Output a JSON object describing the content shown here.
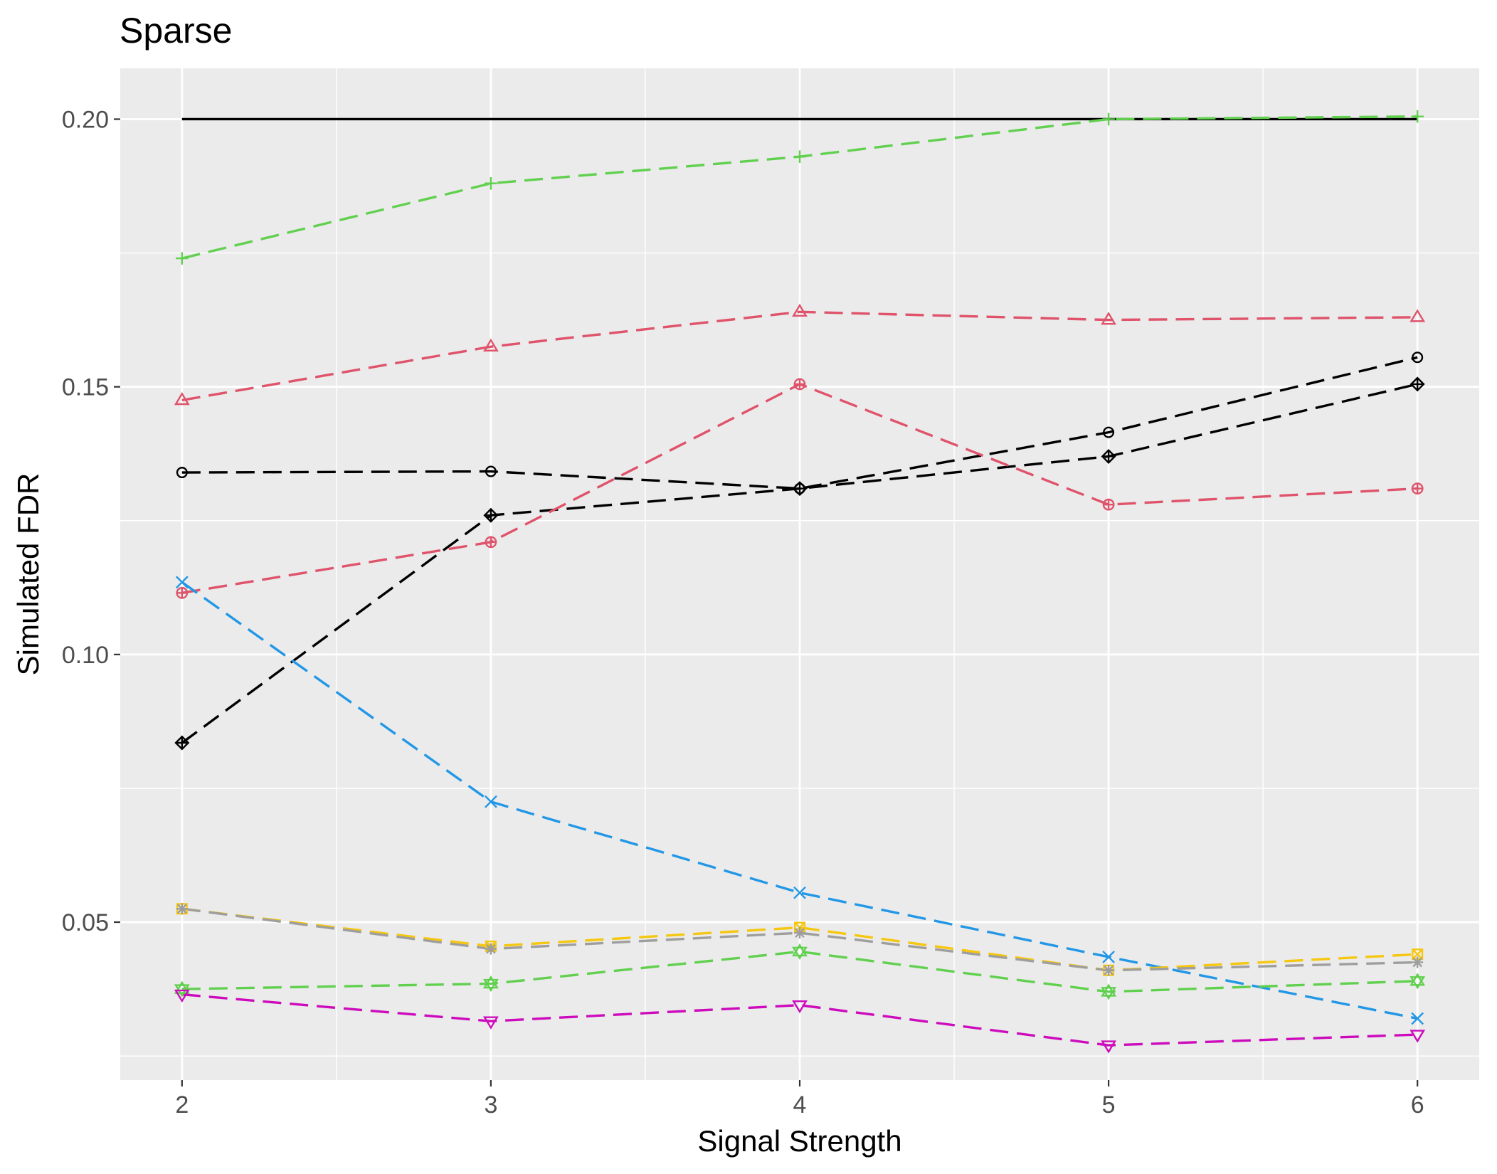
{
  "chart_data": {
    "type": "line",
    "title": "Sparse",
    "xlabel": "Signal Strength",
    "ylabel": "Simulated FDR",
    "x": [
      2,
      3,
      4,
      5,
      6
    ],
    "xlim": [
      1.8,
      6.2
    ],
    "ylim": [
      0.0205,
      0.2095
    ],
    "x_ticks": [
      "2",
      "3",
      "4",
      "5",
      "6"
    ],
    "y_ticks": [
      "0.05",
      "0.10",
      "0.15",
      "0.20"
    ],
    "x_tick_values": [
      2,
      3,
      4,
      5,
      6
    ],
    "y_tick_values": [
      0.05,
      0.1,
      0.15,
      0.2
    ],
    "grid": true,
    "legend": "none",
    "panel_background": "#EBEBEB",
    "reference_line": {
      "name": "target-fdr-line",
      "value": 0.2,
      "color": "#000000"
    },
    "series": [
      {
        "name": "green-plus-series",
        "color": "#61D04F",
        "marker": "plus",
        "values": [
          0.174,
          0.188,
          0.193,
          0.2,
          0.2005
        ]
      },
      {
        "name": "red-triangle-series",
        "color": "#DF536B",
        "marker": "triangle-up",
        "values": [
          0.1475,
          0.1575,
          0.164,
          0.1625,
          0.163
        ]
      },
      {
        "name": "black-circle-series",
        "color": "#000000",
        "marker": "circle",
        "values": [
          0.134,
          0.1342,
          0.131,
          0.1415,
          0.1555
        ]
      },
      {
        "name": "black-diamond-plus-series",
        "color": "#000000",
        "marker": "diamond-plus",
        "values": [
          0.0835,
          0.126,
          0.131,
          0.137,
          0.1505
        ]
      },
      {
        "name": "red-circle-plus-series",
        "color": "#DF536B",
        "marker": "circle-plus",
        "values": [
          0.1115,
          0.121,
          0.1505,
          0.128,
          0.131
        ]
      },
      {
        "name": "blue-cross-series",
        "color": "#2297E6",
        "marker": "cross",
        "values": [
          0.1135,
          0.0725,
          0.0555,
          0.0435,
          0.032
        ]
      },
      {
        "name": "yellow-square-series",
        "color": "#F5C710",
        "marker": "square-cross",
        "values": [
          0.0525,
          0.0455,
          0.049,
          0.041,
          0.044
        ]
      },
      {
        "name": "gray-asterisk-series",
        "color": "#9E9E9E",
        "marker": "asterisk",
        "values": [
          0.0525,
          0.045,
          0.048,
          0.041,
          0.0425
        ]
      },
      {
        "name": "green-star-series",
        "color": "#61D04F",
        "marker": "star-of-david",
        "values": [
          0.0375,
          0.0385,
          0.0445,
          0.037,
          0.039
        ]
      },
      {
        "name": "magenta-triangle-down-series",
        "color": "#CD0BBC",
        "marker": "triangle-down",
        "values": [
          0.0365,
          0.0315,
          0.0345,
          0.027,
          0.029
        ]
      }
    ]
  }
}
